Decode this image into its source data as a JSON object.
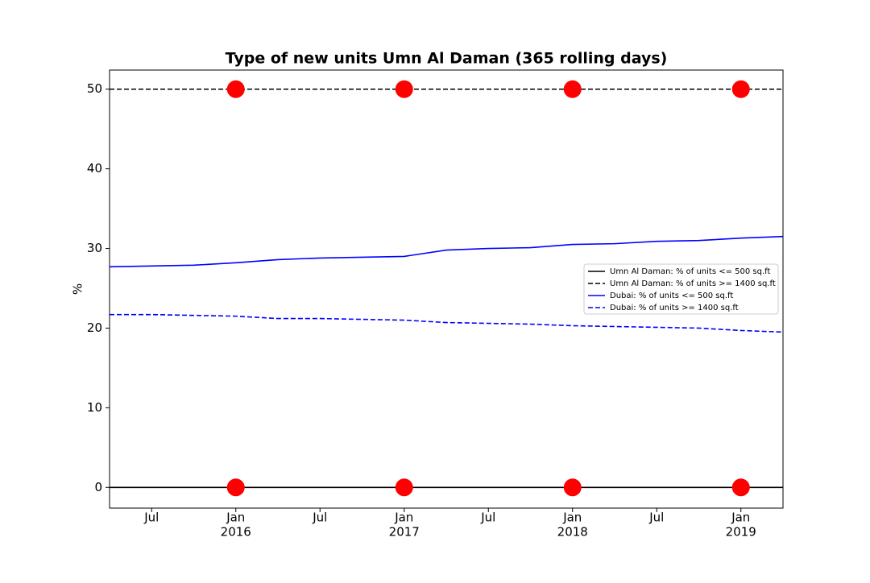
{
  "chart_data": {
    "type": "line",
    "title": "Type of new units Umn Al Daman (365 rolling days)",
    "y_label": "%",
    "x": [
      "2015-04",
      "2015-07",
      "2015-10",
      "2016-01",
      "2016-04",
      "2016-07",
      "2016-10",
      "2017-01",
      "2017-04",
      "2017-07",
      "2017-10",
      "2018-01",
      "2018-04",
      "2018-07",
      "2018-10",
      "2019-01",
      "2019-04"
    ],
    "series": [
      {
        "name": "Umn Al Daman: % of units <= 500 sq.ft",
        "color": "#000000",
        "dash": false,
        "values": [
          0,
          0,
          0,
          0,
          0,
          0,
          0,
          0,
          0,
          0,
          0,
          0,
          0,
          0,
          0,
          0,
          0
        ]
      },
      {
        "name": "Umn Al Daman: % of units >= 1400 sq.ft",
        "color": "#000000",
        "dash": true,
        "values": [
          50,
          50,
          50,
          50,
          50,
          50,
          50,
          50,
          50,
          50,
          50,
          50,
          50,
          50,
          50,
          50,
          50
        ]
      },
      {
        "name": "Dubai: % of units <= 500 sq.ft",
        "color": "#0000ff",
        "dash": false,
        "values": [
          27.7,
          27.8,
          27.9,
          28.2,
          28.6,
          28.8,
          28.9,
          29.0,
          29.8,
          30.0,
          30.1,
          30.5,
          30.6,
          30.9,
          31.0,
          31.3,
          31.5
        ]
      },
      {
        "name": "Dubai: % of units >= 1400 sq.ft",
        "color": "#0000ff",
        "dash": true,
        "values": [
          21.7,
          21.7,
          21.6,
          21.5,
          21.2,
          21.2,
          21.1,
          21.0,
          20.7,
          20.6,
          20.5,
          20.3,
          20.2,
          20.1,
          20.0,
          19.7,
          19.5
        ]
      }
    ],
    "markers": {
      "color": "#ff0000",
      "x": [
        "2016-01",
        "2017-01",
        "2018-01",
        "2019-01",
        "2016-01",
        "2017-01",
        "2018-01",
        "2019-01"
      ],
      "values": [
        50,
        50,
        50,
        50,
        0,
        0,
        0,
        0
      ]
    },
    "xlim": [
      "2015-04",
      "2019-04"
    ],
    "xticks": [
      {
        "value": "2015-07",
        "label": "Jul"
      },
      {
        "value": "2016-01",
        "label": "Jan"
      },
      {
        "value": "2016-07",
        "label": "Jul"
      },
      {
        "value": "2017-01",
        "label": "Jan"
      },
      {
        "value": "2017-07",
        "label": "Jul"
      },
      {
        "value": "2018-01",
        "label": "Jan"
      },
      {
        "value": "2018-07",
        "label": "Jul"
      },
      {
        "value": "2019-01",
        "label": "Jan"
      }
    ],
    "xticks_year": [
      {
        "value": "2016-01",
        "label": "2016"
      },
      {
        "value": "2017-01",
        "label": "2017"
      },
      {
        "value": "2018-01",
        "label": "2018"
      },
      {
        "value": "2019-01",
        "label": "2019"
      }
    ],
    "ylim": [
      -2.6,
      52.4
    ],
    "yticks": [
      0,
      10,
      20,
      30,
      40,
      50
    ],
    "legend": "center right"
  }
}
